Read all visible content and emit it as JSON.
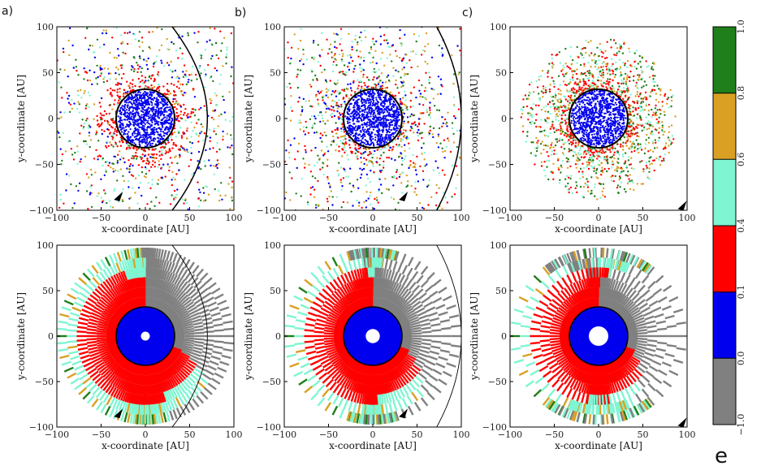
{
  "panel_labels": [
    "a)",
    "b)",
    "c)"
  ],
  "colorbar": {
    "label": "e",
    "tick_labels": [
      "1.0",
      "0.8",
      "0.6",
      "0.4",
      "0.1",
      "0.0",
      "−1.0"
    ],
    "colors": [
      "#1f7f1a",
      "#d9a024",
      "#7ff5d2",
      "#ff0000",
      "#0000ee",
      "#808080"
    ]
  },
  "chart_data": [
    {
      "panel": "a",
      "row": "top",
      "type": "scatter",
      "xlabel": "x-coordinate [AU]",
      "ylabel": "y-coordinate [AU]",
      "xlim": [
        -100,
        100
      ],
      "ylim": [
        -100,
        100
      ],
      "xticks": [
        -100,
        -50,
        0,
        50,
        100
      ],
      "yticks": [
        100,
        50,
        0,
        -50,
        -100
      ],
      "inner_disk_radius_au": 33,
      "trajectory_pericenter_au": 70,
      "trajectory_vertex": "right",
      "arrow_x_au": -30,
      "arrow_y_au": -85,
      "particle_mix": [
        "red",
        "cyan",
        "blue",
        "orange",
        "green"
      ]
    },
    {
      "panel": "b",
      "row": "top",
      "type": "scatter",
      "xlabel": "x-coordinate [AU]",
      "ylabel": "y-coordinate [AU]",
      "xlim": [
        -100,
        100
      ],
      "ylim": [
        -100,
        100
      ],
      "xticks": [
        -100,
        -50,
        0,
        50,
        100
      ],
      "yticks": [
        100,
        50,
        0,
        -50,
        -100
      ],
      "inner_disk_radius_au": 33,
      "trajectory_pericenter_au": 100,
      "trajectory_vertex": "right",
      "arrow_x_au": 35,
      "arrow_y_au": -85,
      "particle_mix": [
        "orange",
        "cyan",
        "red",
        "green",
        "blue"
      ]
    },
    {
      "panel": "c",
      "row": "top",
      "type": "scatter",
      "xlabel": "x-coordinate [AU]",
      "ylabel": "y-coordinate [AU]",
      "xlim": [
        -100,
        100
      ],
      "ylim": [
        -100,
        100
      ],
      "xticks": [
        -100,
        -50,
        0,
        50,
        100
      ],
      "yticks": [
        100,
        50,
        0,
        -50,
        -100
      ],
      "inner_disk_radius_au": 33,
      "trajectory_pericenter_au": 160,
      "trajectory_vertex": "right",
      "arrow_x_au": 95,
      "arrow_y_au": -95,
      "particle_mix": [
        "green",
        "orange",
        "red",
        "cyan"
      ]
    },
    {
      "panel": "a",
      "row": "bottom",
      "type": "heatmap",
      "xlabel": "x-coordinate [AU]",
      "ylabel": "y-coordinate [AU]",
      "xlim": [
        -100,
        100
      ],
      "ylim": [
        -100,
        100
      ],
      "xticks": [
        -100,
        -50,
        0,
        50,
        100
      ],
      "yticks": [
        100,
        50,
        0,
        -50,
        -100
      ],
      "disk_radius_au": 100,
      "inner_disk_radius_au": 33,
      "hole_radius_au": 5,
      "trajectory_pericenter_au": 70,
      "arrow_x_au": -30,
      "arrow_y_au": -85
    },
    {
      "panel": "b",
      "row": "bottom",
      "type": "heatmap",
      "xlabel": "x-coordinate [AU]",
      "ylabel": "y-coordinate [AU]",
      "xlim": [
        -100,
        100
      ],
      "ylim": [
        -100,
        100
      ],
      "xticks": [
        -100,
        -50,
        0,
        50,
        100
      ],
      "yticks": [
        100,
        50,
        0,
        -50,
        -100
      ],
      "disk_radius_au": 100,
      "inner_disk_radius_au": 33,
      "hole_radius_au": 8,
      "trajectory_pericenter_au": 100,
      "arrow_x_au": 35,
      "arrow_y_au": -85
    },
    {
      "panel": "c",
      "row": "bottom",
      "type": "heatmap",
      "xlabel": "x-coordinate [AU]",
      "ylabel": "y-coordinate [AU]",
      "xlim": [
        -100,
        100
      ],
      "ylim": [
        -100,
        100
      ],
      "xticks": [
        -100,
        -50,
        0,
        50,
        100
      ],
      "yticks": [
        100,
        50,
        0,
        -50,
        -100
      ],
      "disk_radius_au": 100,
      "inner_disk_radius_au": 33,
      "hole_radius_au": 11,
      "trajectory_pericenter_au": 160,
      "arrow_x_au": 95,
      "arrow_y_au": -95
    }
  ]
}
